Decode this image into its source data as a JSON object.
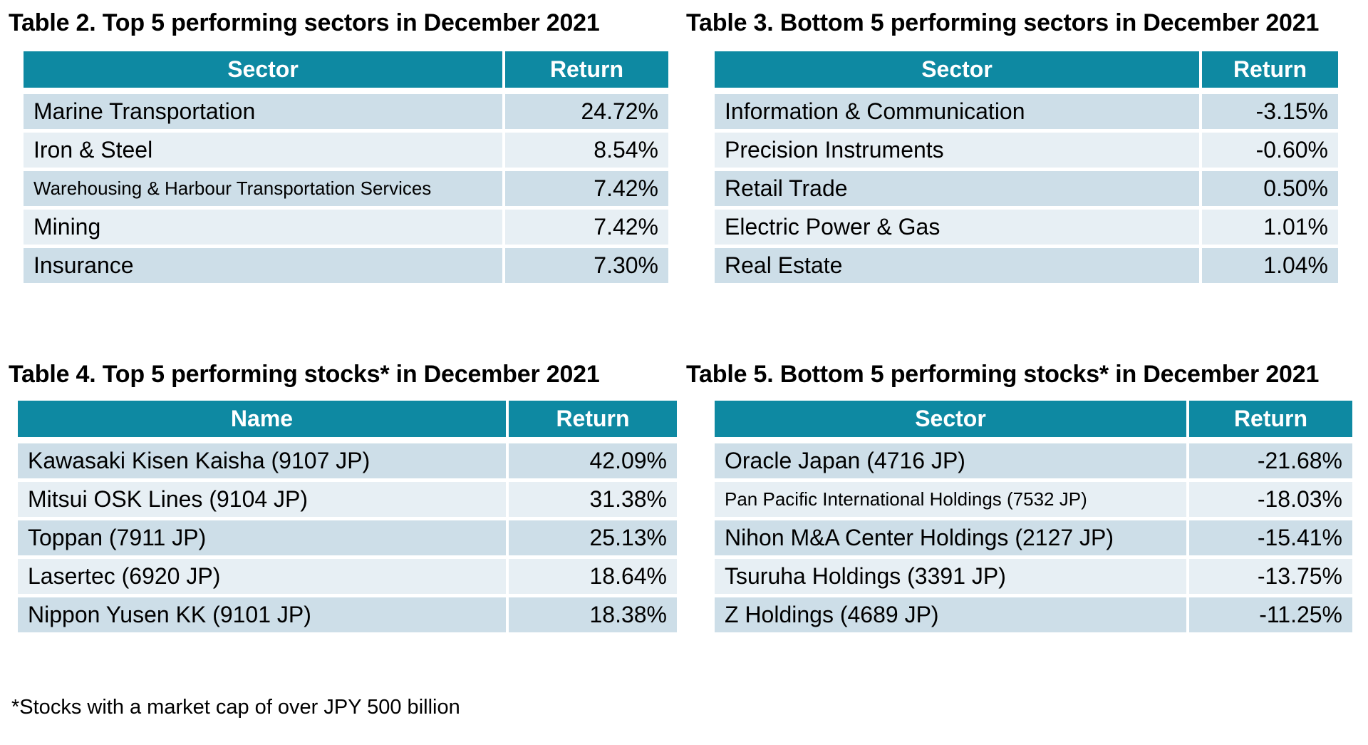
{
  "colors": {
    "accent": "#0E89A2",
    "row_dark": "#CDDEE8",
    "row_light": "#E7EFF4",
    "header_text": "#FFFFFF",
    "body_text": "#000000"
  },
  "footnote": "*Stocks with a market cap of over JPY 500 billion",
  "tables": [
    {
      "id": "table-2",
      "title": "Table 2. Top 5 performing sectors in December 2021",
      "columns": [
        "Sector",
        "Return"
      ],
      "rows": [
        {
          "label": "Marine Transportation",
          "value": "24.72%"
        },
        {
          "label": "Iron & Steel",
          "value": "8.54%"
        },
        {
          "label": "Warehousing & Harbour Transportation Services",
          "value": "7.42%",
          "small": true
        },
        {
          "label": "Mining",
          "value": "7.42%"
        },
        {
          "label": "Insurance",
          "value": "7.30%"
        }
      ]
    },
    {
      "id": "table-3",
      "title": "Table 3. Bottom 5 performing sectors in December 2021",
      "columns": [
        "Sector",
        "Return"
      ],
      "rows": [
        {
          "label": "Information & Communication",
          "value": "-3.15%"
        },
        {
          "label": "Precision Instruments",
          "value": "-0.60%"
        },
        {
          "label": "Retail Trade",
          "value": "0.50%"
        },
        {
          "label": "Electric Power & Gas",
          "value": "1.01%"
        },
        {
          "label": "Real Estate",
          "value": "1.04%"
        }
      ]
    },
    {
      "id": "table-4",
      "title": "Table 4. Top 5 performing stocks* in December 2021",
      "columns": [
        "Name",
        "Return"
      ],
      "rows": [
        {
          "label": "Kawasaki Kisen Kaisha (9107 JP)",
          "value": "42.09%"
        },
        {
          "label": "Mitsui OSK Lines (9104 JP)",
          "value": "31.38%"
        },
        {
          "label": "Toppan (7911 JP)",
          "value": "25.13%"
        },
        {
          "label": "Lasertec (6920 JP)",
          "value": "18.64%"
        },
        {
          "label": "Nippon Yusen KK (9101 JP)",
          "value": "18.38%"
        }
      ]
    },
    {
      "id": "table-5",
      "title": "Table 5. Bottom 5 performing stocks* in December 2021",
      "columns": [
        "Sector",
        "Return"
      ],
      "rows": [
        {
          "label": "Oracle Japan (4716 JP)",
          "value": "-21.68%"
        },
        {
          "label": "Pan Pacific International Holdings (7532 JP)",
          "value": "-18.03%",
          "small": true
        },
        {
          "label": "Nihon M&A Center Holdings (2127 JP)",
          "value": "-15.41%"
        },
        {
          "label": "Tsuruha Holdings (3391 JP)",
          "value": "-13.75%"
        },
        {
          "label": "Z Holdings (4689 JP)",
          "value": "-11.25%"
        }
      ]
    }
  ]
}
